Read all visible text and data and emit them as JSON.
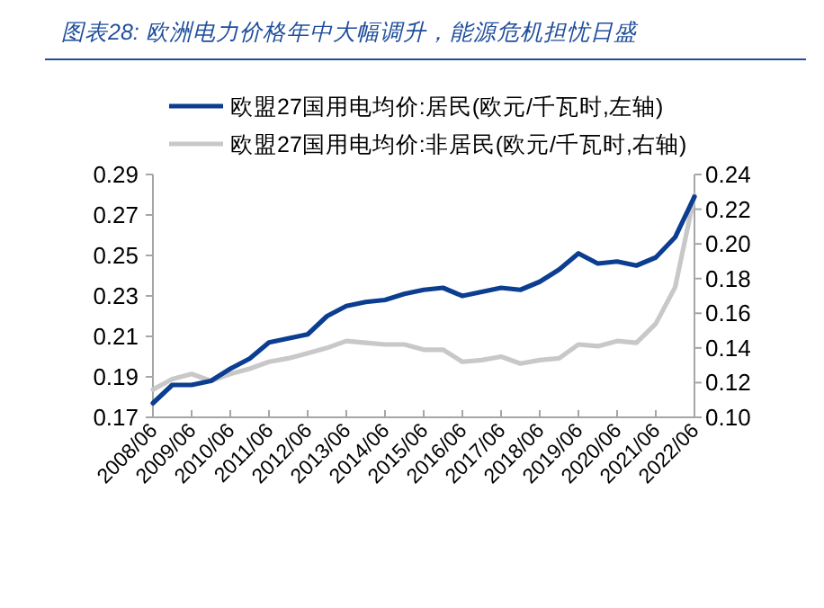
{
  "chart_data": {
    "type": "line",
    "title": "图表28: 欧洲电力价格年中大幅调升，能源危机担忧日盛",
    "categories": [
      "2008/06",
      null,
      "2009/06",
      null,
      "2010/06",
      null,
      "2011/06",
      null,
      "2012/06",
      null,
      "2013/06",
      null,
      "2014/06",
      null,
      "2015/06",
      null,
      "2016/06",
      null,
      "2017/06",
      null,
      "2018/06",
      null,
      "2019/06",
      null,
      "2020/06",
      null,
      "2021/06",
      null,
      "2022/06"
    ],
    "series": [
      {
        "name": "欧盟27国用电均价:居民(欧元/千瓦时,左轴)",
        "color": "#0b3d91",
        "values": [
          0.177,
          0.186,
          0.186,
          0.188,
          0.194,
          0.199,
          0.207,
          0.209,
          0.211,
          0.22,
          0.225,
          0.227,
          0.228,
          0.231,
          0.233,
          0.234,
          0.23,
          0.232,
          0.234,
          0.233,
          0.237,
          0.243,
          0.251,
          0.246,
          0.247,
          0.245,
          0.249,
          0.259,
          0.279
        ]
      },
      {
        "name": "欧盟27国用电均价:非居民(欧元/千瓦时,右轴)",
        "color": "#c8c8c8",
        "axis": "y2",
        "values": [
          0.116,
          0.122,
          0.125,
          0.121,
          0.125,
          0.128,
          0.132,
          0.134,
          0.137,
          0.14,
          0.144,
          0.143,
          0.142,
          0.142,
          0.139,
          0.139,
          0.132,
          0.133,
          0.135,
          0.131,
          0.133,
          0.134,
          0.142,
          0.141,
          0.144,
          0.143,
          0.154,
          0.175,
          0.228
        ]
      }
    ],
    "ylim": [
      0.17,
      0.29
    ],
    "yticks": [
      0.17,
      0.19,
      0.21,
      0.23,
      0.25,
      0.27,
      0.29
    ],
    "y2lim": [
      0.1,
      0.24
    ],
    "y2ticks": [
      {
        "value": 0.1,
        "label": "0.10"
      },
      0.12,
      0.14,
      0.16,
      0.18,
      {
        "value": 0.2,
        "label": "0.20"
      },
      0.22,
      0.24
    ],
    "legend": "top"
  }
}
